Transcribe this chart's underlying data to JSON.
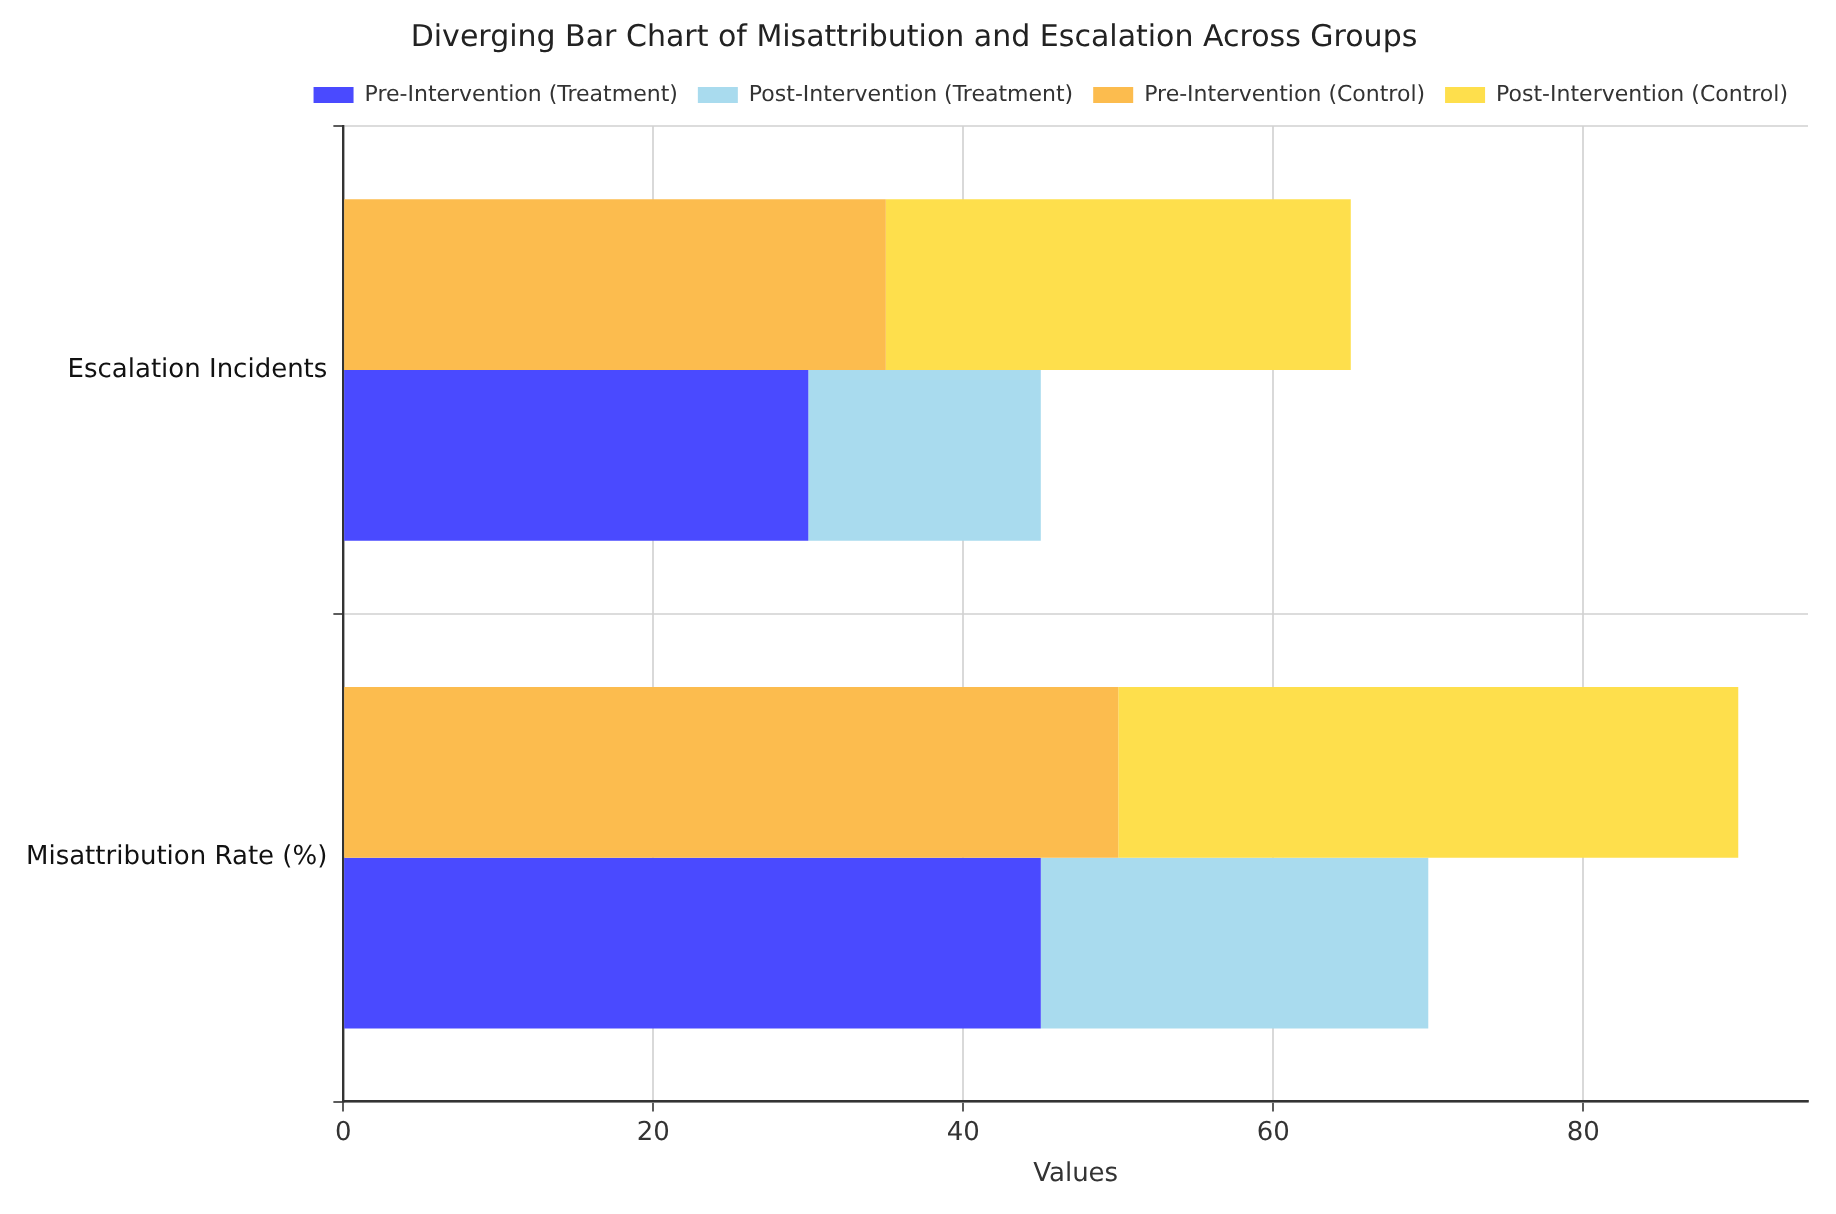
{
  "chart_data": {
    "type": "bar",
    "orientation": "horizontal",
    "title": "Diverging Bar Chart of Misattribution and Escalation Across Groups",
    "xlabel": "Values",
    "categories": [
      "Escalation Incidents",
      "Misattribution Rate (%)"
    ],
    "series": [
      {
        "name": "Pre-Intervention (Treatment)",
        "color": "#4a4aff",
        "values": [
          30,
          45
        ],
        "base": [
          0,
          0
        ]
      },
      {
        "name": "Post-Intervention (Treatment)",
        "color": "#a9dbee",
        "values": [
          15,
          25
        ],
        "base": [
          30,
          45
        ]
      },
      {
        "name": "Pre-Intervention (Control)",
        "color": "#fcbc4e",
        "values": [
          35,
          50
        ],
        "base": [
          0,
          0
        ]
      },
      {
        "name": "Post-Intervention (Control)",
        "color": "#fedf4c",
        "values": [
          30,
          40
        ],
        "base": [
          35,
          50
        ]
      }
    ],
    "xlim": [
      0,
      94.5
    ],
    "xticks": [
      0,
      20,
      40,
      60,
      80
    ],
    "grid": true,
    "legend": "top right"
  }
}
